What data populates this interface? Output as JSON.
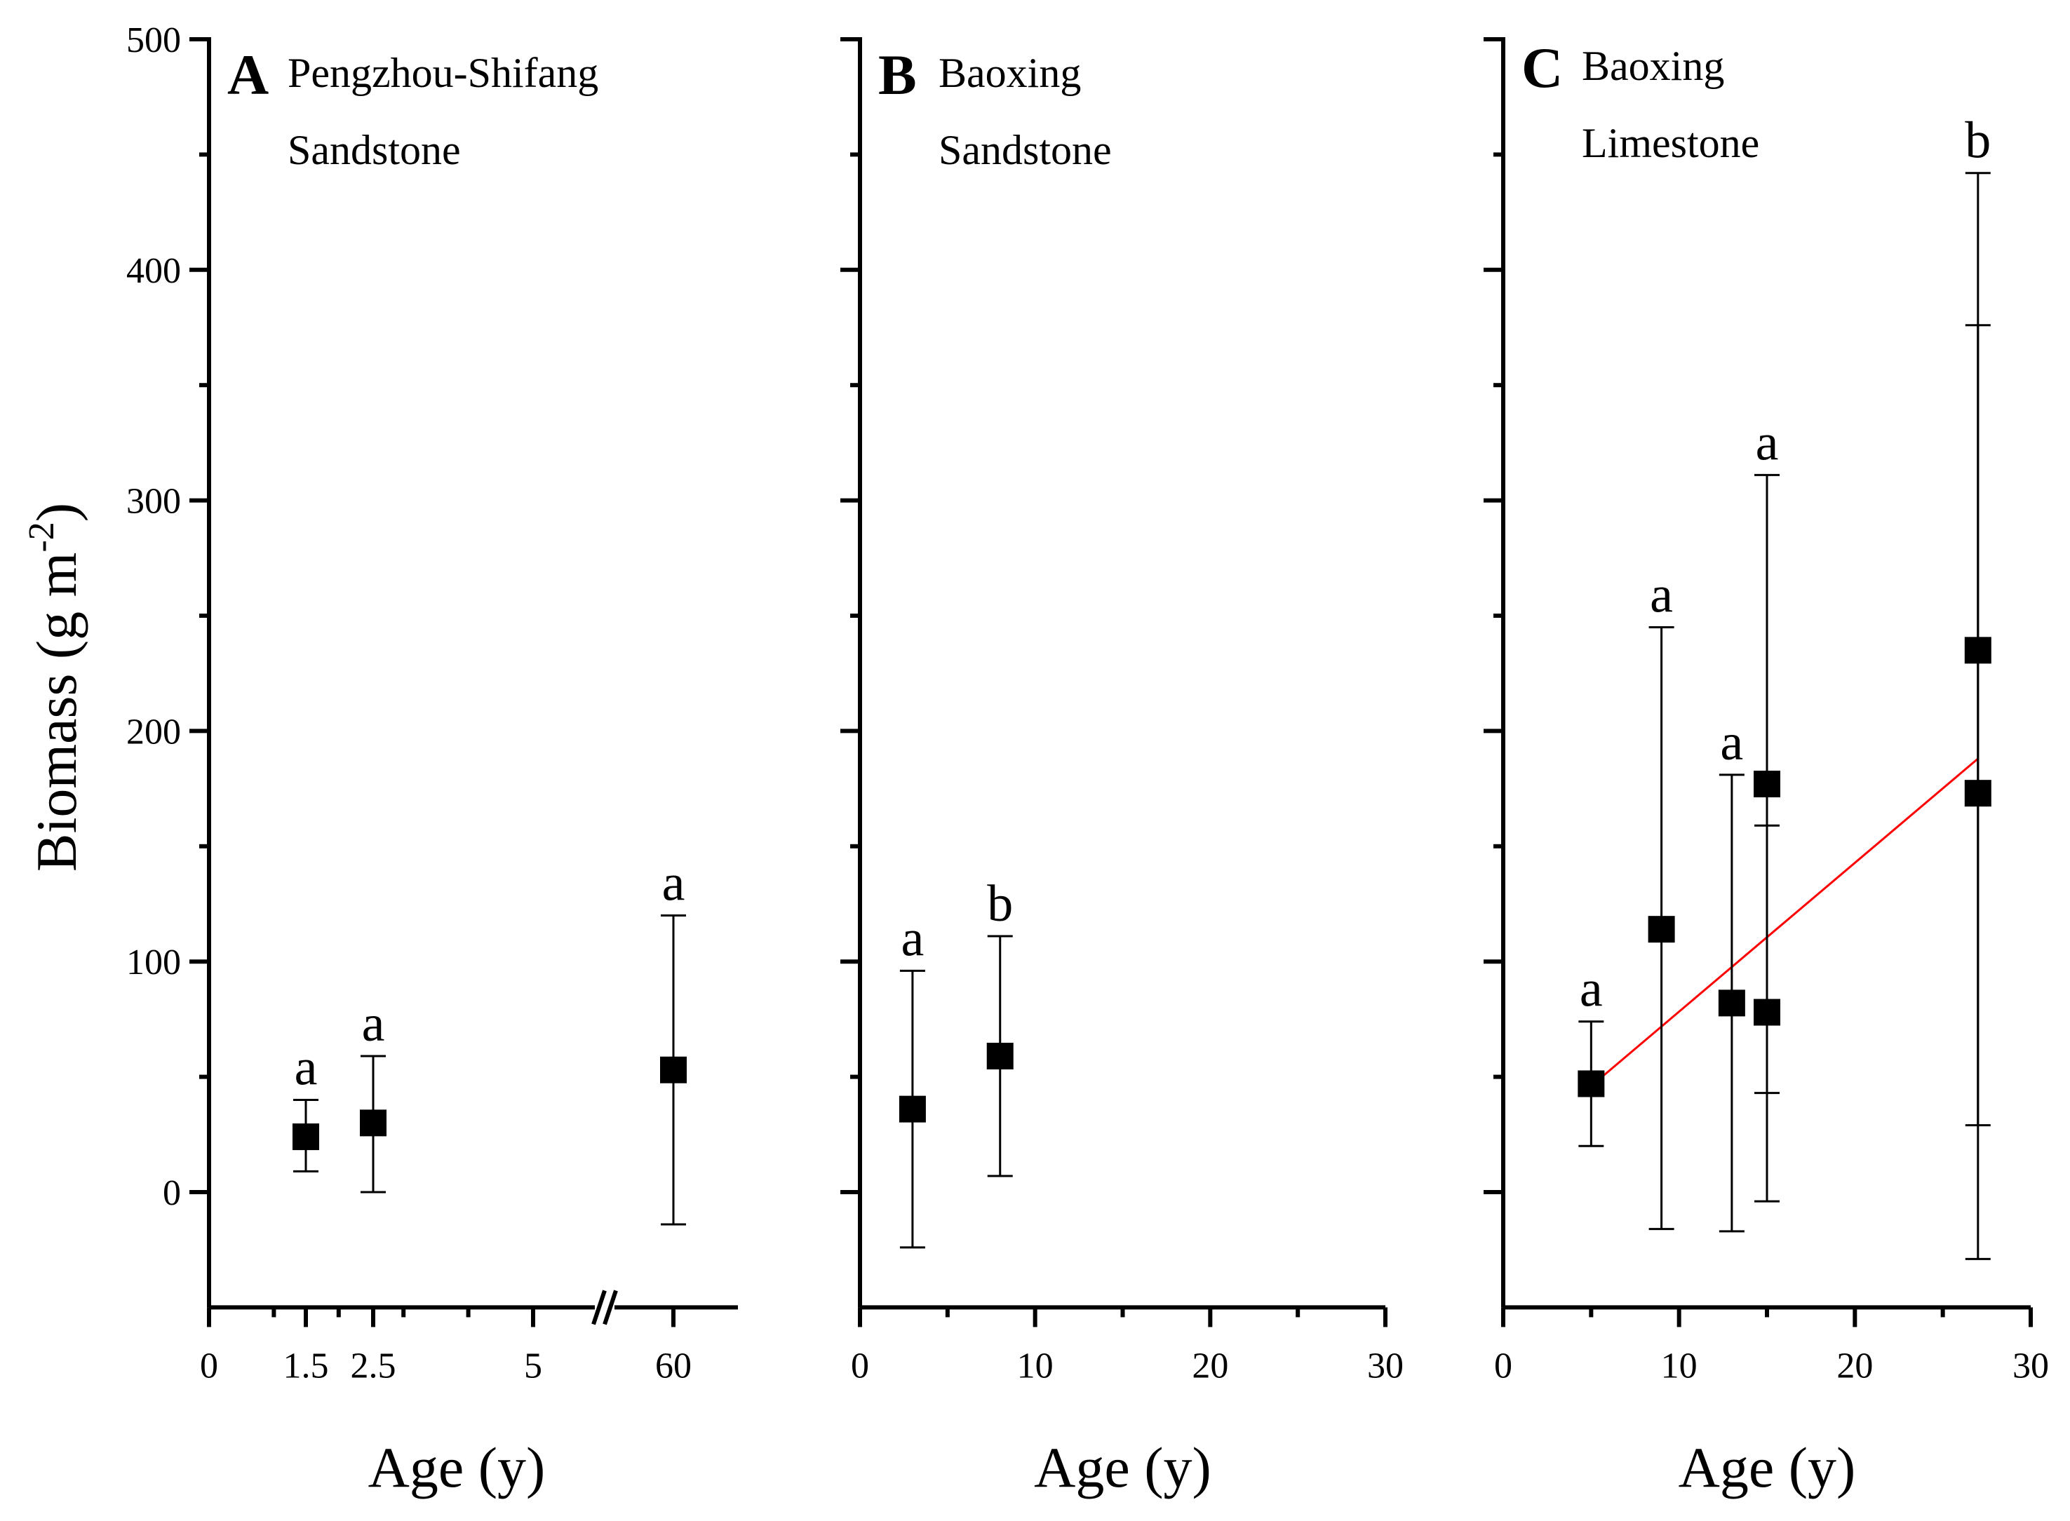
{
  "chart_data": {
    "type": "scatter",
    "y_axis_title": "Biomass (g m",
    "y_axis_title_exponent": "-2",
    "y_axis_title_close": ")",
    "ylim": [
      -50,
      500
    ],
    "yticks": [
      0,
      100,
      200,
      300,
      400,
      500
    ],
    "panels": [
      {
        "letter": "A",
        "site": "Pengzhou-Shifang",
        "rock": "Sandstone",
        "xlabel": "Age (y)",
        "x_axis_break": true,
        "xticks": [
          {
            "label": "0",
            "value": 0
          },
          {
            "label": "1.5",
            "value": 1.5
          },
          {
            "label": "2.5",
            "value": 2.5
          },
          {
            "label": "5",
            "value": 5
          },
          {
            "label": "60",
            "value": 60
          }
        ],
        "points": [
          {
            "x": 1.5,
            "y": 24,
            "err_low": 9,
            "err_high": 40,
            "sig": "a"
          },
          {
            "x": 2.5,
            "y": 30,
            "err_low": 0,
            "err_high": 59,
            "sig": "a"
          },
          {
            "x": 60,
            "y": 53,
            "err_low": -14,
            "err_high": 120,
            "sig": "a"
          }
        ]
      },
      {
        "letter": "B",
        "site": "Baoxing",
        "rock": "Sandstone",
        "xlabel": "Age (y)",
        "xlim": [
          0,
          30
        ],
        "xticks": [
          {
            "label": "0",
            "value": 0
          },
          {
            "label": "10",
            "value": 10
          },
          {
            "label": "20",
            "value": 20
          },
          {
            "label": "30",
            "value": 30
          }
        ],
        "points": [
          {
            "x": 3,
            "y": 36,
            "err_low": -24,
            "err_high": 96,
            "sig": "a"
          },
          {
            "x": 8,
            "y": 59,
            "err_low": 7,
            "err_high": 111,
            "sig": "b"
          }
        ]
      },
      {
        "letter": "C",
        "site": "Baoxing",
        "rock": "Limestone",
        "xlabel": "Age (y)",
        "xlim": [
          0,
          30
        ],
        "xticks": [
          {
            "label": "0",
            "value": 0
          },
          {
            "label": "10",
            "value": 10
          },
          {
            "label": "20",
            "value": 20
          },
          {
            "label": "30",
            "value": 30
          }
        ],
        "points": [
          {
            "x": 5,
            "y": 47,
            "err_low": 20,
            "err_high": 74,
            "sig": "a"
          },
          {
            "x": 9,
            "y": 114,
            "err_low": -16,
            "err_high": 245,
            "sig": "a"
          },
          {
            "x": 13,
            "y": 82,
            "err_low": -17,
            "err_high": 181,
            "sig": "a"
          },
          {
            "x": 15,
            "y": 177,
            "err_low": 43,
            "err_high": 311,
            "sig": "a"
          },
          {
            "x": 15,
            "y": 78,
            "err_low": -4,
            "err_high": 159,
            "sig": ""
          },
          {
            "x": 27,
            "y": 235,
            "err_low": 29,
            "err_high": 442,
            "sig": "b"
          },
          {
            "x": 27,
            "y": 173,
            "err_low": -29,
            "err_high": 376,
            "sig": ""
          }
        ],
        "fit_line": {
          "x": [
            5,
            27
          ],
          "y": [
            46,
            188
          ],
          "color": "#ff0000"
        }
      }
    ]
  }
}
